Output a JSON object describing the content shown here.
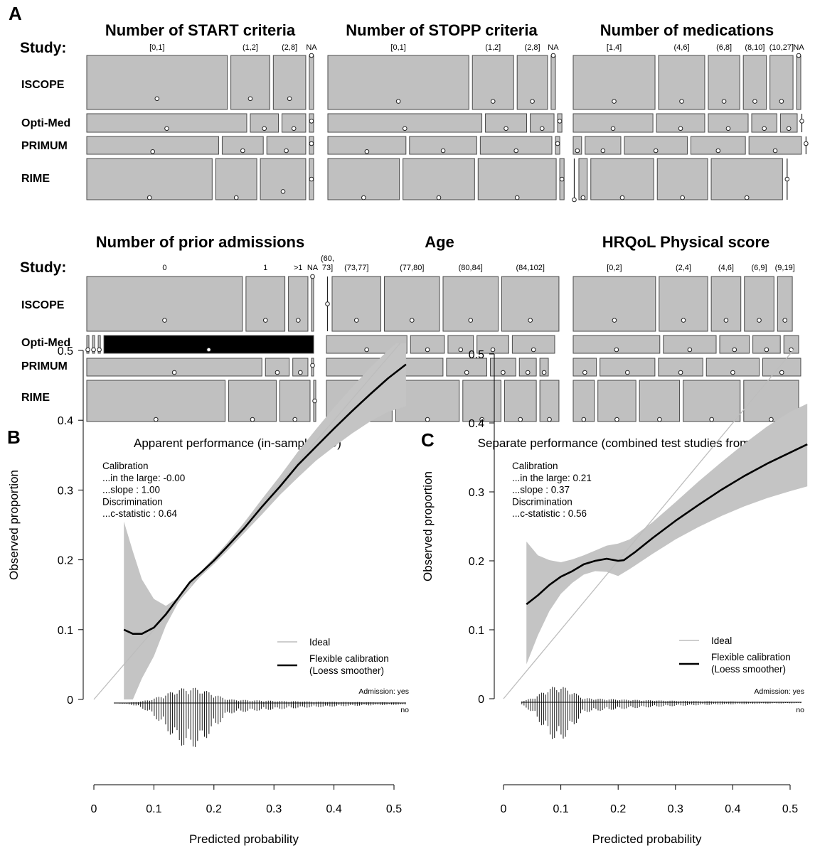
{
  "panel_labels": {
    "a": "A",
    "b": "B",
    "c": "C"
  },
  "study_label": "Study:",
  "studies": [
    "ISCOPE",
    "Opti-Med",
    "PRIMUM",
    "RIME"
  ],
  "colors": {
    "tile": "#c0c0c0",
    "tile_stroke": "#4a4a4a",
    "band": "#c4c4c4",
    "curve": "#000000",
    "ideal": "#bdbdbd",
    "highlight": "#000000"
  },
  "chart_data": [
    {
      "type": "mosaic",
      "title": "Number of START criteria",
      "categories": [
        "[0,1]",
        "(1,2]",
        "(2,8]",
        "NA"
      ],
      "shares": {
        "ISCOPE": [
          0.65,
          0.18,
          0.15,
          0.02
        ],
        "Opti-Med": [
          0.74,
          0.13,
          0.11,
          0.02
        ],
        "PRIMUM": [
          0.61,
          0.19,
          0.18,
          0.02
        ],
        "RIME": [
          0.58,
          0.19,
          0.21,
          0.02
        ]
      },
      "observed": {
        "ISCOPE": [
          0.2,
          0.2,
          0.2,
          1.0
        ],
        "Opti-Med": [
          0.2,
          0.2,
          0.2,
          0.6
        ],
        "PRIMUM": [
          0.15,
          0.2,
          0.2,
          0.6
        ],
        "RIME": [
          0.05,
          0.05,
          0.2,
          0.5
        ]
      }
    },
    {
      "type": "mosaic",
      "title": "Number of STOPP criteria",
      "categories": [
        "[0,1]",
        "(1,2]",
        "(2,8]",
        "NA"
      ],
      "shares": {
        "ISCOPE": [
          0.65,
          0.19,
          0.14,
          0.02
        ],
        "Opti-Med": [
          0.71,
          0.19,
          0.11,
          0.02
        ],
        "PRIMUM": [
          0.36,
          0.31,
          0.33,
          0.02
        ],
        "RIME": [
          0.33,
          0.33,
          0.36,
          0.02
        ]
      },
      "observed": {
        "ISCOPE": [
          0.15,
          0.15,
          0.15,
          1.0
        ],
        "Opti-Med": [
          0.2,
          0.2,
          0.2,
          0.6
        ],
        "PRIMUM": [
          0.15,
          0.2,
          0.2,
          0.6
        ],
        "RIME": [
          0.05,
          0.05,
          0.05,
          0.5
        ]
      }
    },
    {
      "type": "mosaic",
      "title": "Number of medications",
      "categories": [
        "[1,4]",
        "(4,6]",
        "(6,8]",
        "(8,10]",
        "(10,27]",
        "NA"
      ],
      "shares": {
        "ISCOPE": [
          0.39,
          0.22,
          0.15,
          0.11,
          0.11,
          0.02
        ],
        "Opti-Med": [
          0.38,
          0.23,
          0.19,
          0.12,
          0.08,
          0.01
        ],
        "PRIMUM": [
          0.04,
          0.17,
          0.3,
          0.26,
          0.25,
          0.01
        ],
        "RIME": [
          0.01,
          0.04,
          0.3,
          0.24,
          0.34,
          0.01
        ]
      },
      "observed": {
        "ISCOPE": [
          0.15,
          0.15,
          0.15,
          0.15,
          0.15,
          1.0
        ],
        "Opti-Med": [
          0.2,
          0.2,
          0.2,
          0.2,
          0.2,
          0.6
        ],
        "PRIMUM": [
          0.2,
          0.2,
          0.2,
          0.2,
          0.2,
          0.6
        ],
        "RIME": [
          0.0,
          0.05,
          0.05,
          0.05,
          0.05,
          0.5
        ]
      }
    },
    {
      "type": "mosaic",
      "title": "Number of prior admissions",
      "categories": [
        "0",
        "1",
        ">1",
        "NA"
      ],
      "shares": {
        "ISCOPE": [
          0.72,
          0.18,
          0.09,
          0.01
        ],
        "Opti-Med": [
          0.01,
          0.01,
          0.01,
          0.97
        ],
        "PRIMUM": [
          0.81,
          0.11,
          0.07,
          0.01
        ],
        "RIME": [
          0.64,
          0.22,
          0.14,
          0.01
        ]
      },
      "observed": {
        "ISCOPE": [
          0.2,
          0.2,
          0.2,
          1.0
        ],
        "Opti-Med": [
          0.2,
          0.2,
          0.2,
          0.2
        ],
        "PRIMUM": [
          0.2,
          0.2,
          0.2,
          0.6
        ],
        "RIME": [
          0.05,
          0.05,
          0.05,
          0.5
        ]
      }
    },
    {
      "type": "mosaic",
      "title": "Age",
      "categories": [
        "(60,\n73]",
        "(73,77]",
        "(77,80]",
        "(80,84]",
        "(84,102]"
      ],
      "shares": {
        "ISCOPE": [
          0.01,
          0.23,
          0.26,
          0.26,
          0.27
        ],
        "Opti-Med": [
          0.38,
          0.16,
          0.12,
          0.15,
          0.2
        ],
        "PRIMUM": [
          0.55,
          0.19,
          0.12,
          0.08,
          0.04
        ],
        "RIME": [
          0.31,
          0.3,
          0.18,
          0.15,
          0.09
        ]
      },
      "observed": {
        "ISCOPE": [
          0.5,
          0.2,
          0.2,
          0.2,
          0.2
        ],
        "Opti-Med": [
          0.2,
          0.2,
          0.2,
          0.2,
          0.2
        ],
        "PRIMUM": [
          0.2,
          0.2,
          0.2,
          0.2,
          0.2
        ],
        "RIME": [
          0.05,
          0.05,
          0.05,
          0.05,
          0.05
        ]
      }
    },
    {
      "type": "mosaic",
      "title": "HRQoL Physical score",
      "categories": [
        "[0,2]",
        "(2,4]",
        "(4,6]",
        "(6,9]",
        "(9,19]"
      ],
      "shares": {
        "ISCOPE": [
          0.39,
          0.23,
          0.14,
          0.14,
          0.07
        ],
        "Opti-Med": [
          0.41,
          0.25,
          0.14,
          0.13,
          0.07
        ],
        "PRIMUM": [
          0.11,
          0.26,
          0.21,
          0.25,
          0.18
        ],
        "RIME": [
          0.1,
          0.18,
          0.19,
          0.27,
          0.26
        ]
      },
      "observed": {
        "ISCOPE": [
          0.2,
          0.2,
          0.2,
          0.2,
          0.2
        ],
        "Opti-Med": [
          0.2,
          0.2,
          0.2,
          0.2,
          0.2
        ],
        "PRIMUM": [
          0.2,
          0.2,
          0.2,
          0.2,
          0.2
        ],
        "RIME": [
          0.05,
          0.05,
          0.05,
          0.05,
          0.05
        ]
      }
    },
    {
      "type": "line",
      "title": "Apparent performance (in-sample IPD)",
      "xlabel": "Predicted probability",
      "ylabel": "Observed proportion",
      "xlim": [
        0,
        0.5
      ],
      "ylim": [
        0,
        0.5
      ],
      "xticks": [
        0,
        0.1,
        0.2,
        0.3,
        0.4,
        0.5
      ],
      "yticks": [
        0,
        0.1,
        0.2,
        0.3,
        0.4,
        0.5
      ],
      "annotation": [
        "Calibration",
        "...in the large: -0.00",
        "...slope : 1.00",
        "Discrimination",
        "...c-statistic : 0.64"
      ],
      "legend": {
        "ideal": "Ideal",
        "flex": [
          "Flexible calibration",
          "(Loess smoother)"
        ]
      },
      "hist_labels": {
        "yes": "Admission: yes",
        "no": "no"
      },
      "hist_peak": 0.16,
      "curve": [
        [
          0.05,
          0.1
        ],
        [
          0.065,
          0.094
        ],
        [
          0.08,
          0.094
        ],
        [
          0.1,
          0.103
        ],
        [
          0.12,
          0.122
        ],
        [
          0.14,
          0.145
        ],
        [
          0.16,
          0.168
        ],
        [
          0.18,
          0.183
        ],
        [
          0.2,
          0.199
        ],
        [
          0.22,
          0.217
        ],
        [
          0.25,
          0.245
        ],
        [
          0.28,
          0.276
        ],
        [
          0.31,
          0.305
        ],
        [
          0.34,
          0.336
        ],
        [
          0.37,
          0.362
        ],
        [
          0.4,
          0.388
        ],
        [
          0.43,
          0.413
        ],
        [
          0.46,
          0.437
        ],
        [
          0.49,
          0.46
        ],
        [
          0.52,
          0.48
        ]
      ],
      "band_upper": [
        [
          0.05,
          0.255
        ],
        [
          0.065,
          0.212
        ],
        [
          0.08,
          0.172
        ],
        [
          0.1,
          0.144
        ],
        [
          0.12,
          0.134
        ],
        [
          0.14,
          0.146
        ],
        [
          0.16,
          0.168
        ],
        [
          0.18,
          0.185
        ],
        [
          0.2,
          0.203
        ],
        [
          0.22,
          0.222
        ],
        [
          0.25,
          0.253
        ],
        [
          0.28,
          0.287
        ],
        [
          0.31,
          0.32
        ],
        [
          0.34,
          0.355
        ],
        [
          0.37,
          0.387
        ],
        [
          0.4,
          0.418
        ],
        [
          0.43,
          0.447
        ],
        [
          0.46,
          0.475
        ],
        [
          0.49,
          0.5
        ],
        [
          0.52,
          0.522
        ]
      ],
      "band_lower": [
        [
          0.05,
          0.0
        ],
        [
          0.065,
          0.0
        ],
        [
          0.08,
          0.03
        ],
        [
          0.1,
          0.062
        ],
        [
          0.12,
          0.106
        ],
        [
          0.14,
          0.138
        ],
        [
          0.16,
          0.162
        ],
        [
          0.18,
          0.178
        ],
        [
          0.2,
          0.194
        ],
        [
          0.22,
          0.211
        ],
        [
          0.25,
          0.238
        ],
        [
          0.28,
          0.265
        ],
        [
          0.31,
          0.293
        ],
        [
          0.34,
          0.318
        ],
        [
          0.37,
          0.342
        ],
        [
          0.4,
          0.362
        ],
        [
          0.43,
          0.381
        ],
        [
          0.46,
          0.398
        ],
        [
          0.49,
          0.412
        ],
        [
          0.52,
          0.42
        ]
      ]
    },
    {
      "type": "line",
      "title": "Separate performance (combined test studies from IECV)",
      "xlabel": "Predicted probability",
      "ylabel": "Observed proportion",
      "xlim": [
        0,
        0.5
      ],
      "ylim": [
        0,
        0.5
      ],
      "xticks": [
        0,
        0.1,
        0.2,
        0.3,
        0.4,
        0.5
      ],
      "yticks": [
        0,
        0.1,
        0.2,
        0.3,
        0.4,
        0.5
      ],
      "annotation": [
        "Calibration",
        "...in the large: 0.21",
        "...slope : 0.37",
        "Discrimination",
        "...c-statistic : 0.56"
      ],
      "legend": {
        "ideal": "Ideal",
        "flex": [
          "Flexible calibration",
          "(Loess smoother)"
        ]
      },
      "hist_labels": {
        "yes": "Admission: yes",
        "no": "no"
      },
      "hist_peak": 0.095,
      "curve": [
        [
          0.04,
          0.137
        ],
        [
          0.06,
          0.15
        ],
        [
          0.08,
          0.165
        ],
        [
          0.1,
          0.177
        ],
        [
          0.12,
          0.185
        ],
        [
          0.14,
          0.195
        ],
        [
          0.16,
          0.2
        ],
        [
          0.18,
          0.203
        ],
        [
          0.2,
          0.2
        ],
        [
          0.21,
          0.201
        ],
        [
          0.23,
          0.213
        ],
        [
          0.26,
          0.233
        ],
        [
          0.3,
          0.258
        ],
        [
          0.34,
          0.281
        ],
        [
          0.38,
          0.303
        ],
        [
          0.42,
          0.323
        ],
        [
          0.46,
          0.341
        ],
        [
          0.5,
          0.357
        ],
        [
          0.53,
          0.369
        ]
      ],
      "band_upper": [
        [
          0.04,
          0.228
        ],
        [
          0.06,
          0.208
        ],
        [
          0.08,
          0.201
        ],
        [
          0.1,
          0.198
        ],
        [
          0.12,
          0.202
        ],
        [
          0.14,
          0.208
        ],
        [
          0.16,
          0.215
        ],
        [
          0.18,
          0.222
        ],
        [
          0.2,
          0.225
        ],
        [
          0.22,
          0.231
        ],
        [
          0.26,
          0.256
        ],
        [
          0.3,
          0.285
        ],
        [
          0.34,
          0.315
        ],
        [
          0.38,
          0.343
        ],
        [
          0.42,
          0.37
        ],
        [
          0.46,
          0.395
        ],
        [
          0.5,
          0.416
        ],
        [
          0.53,
          0.428
        ]
      ],
      "band_lower": [
        [
          0.04,
          0.05
        ],
        [
          0.06,
          0.092
        ],
        [
          0.08,
          0.127
        ],
        [
          0.1,
          0.152
        ],
        [
          0.12,
          0.168
        ],
        [
          0.14,
          0.18
        ],
        [
          0.16,
          0.185
        ],
        [
          0.18,
          0.184
        ],
        [
          0.2,
          0.178
        ],
        [
          0.22,
          0.188
        ],
        [
          0.26,
          0.21
        ],
        [
          0.3,
          0.231
        ],
        [
          0.34,
          0.249
        ],
        [
          0.38,
          0.265
        ],
        [
          0.42,
          0.279
        ],
        [
          0.46,
          0.291
        ],
        [
          0.5,
          0.301
        ],
        [
          0.53,
          0.308
        ]
      ]
    }
  ]
}
